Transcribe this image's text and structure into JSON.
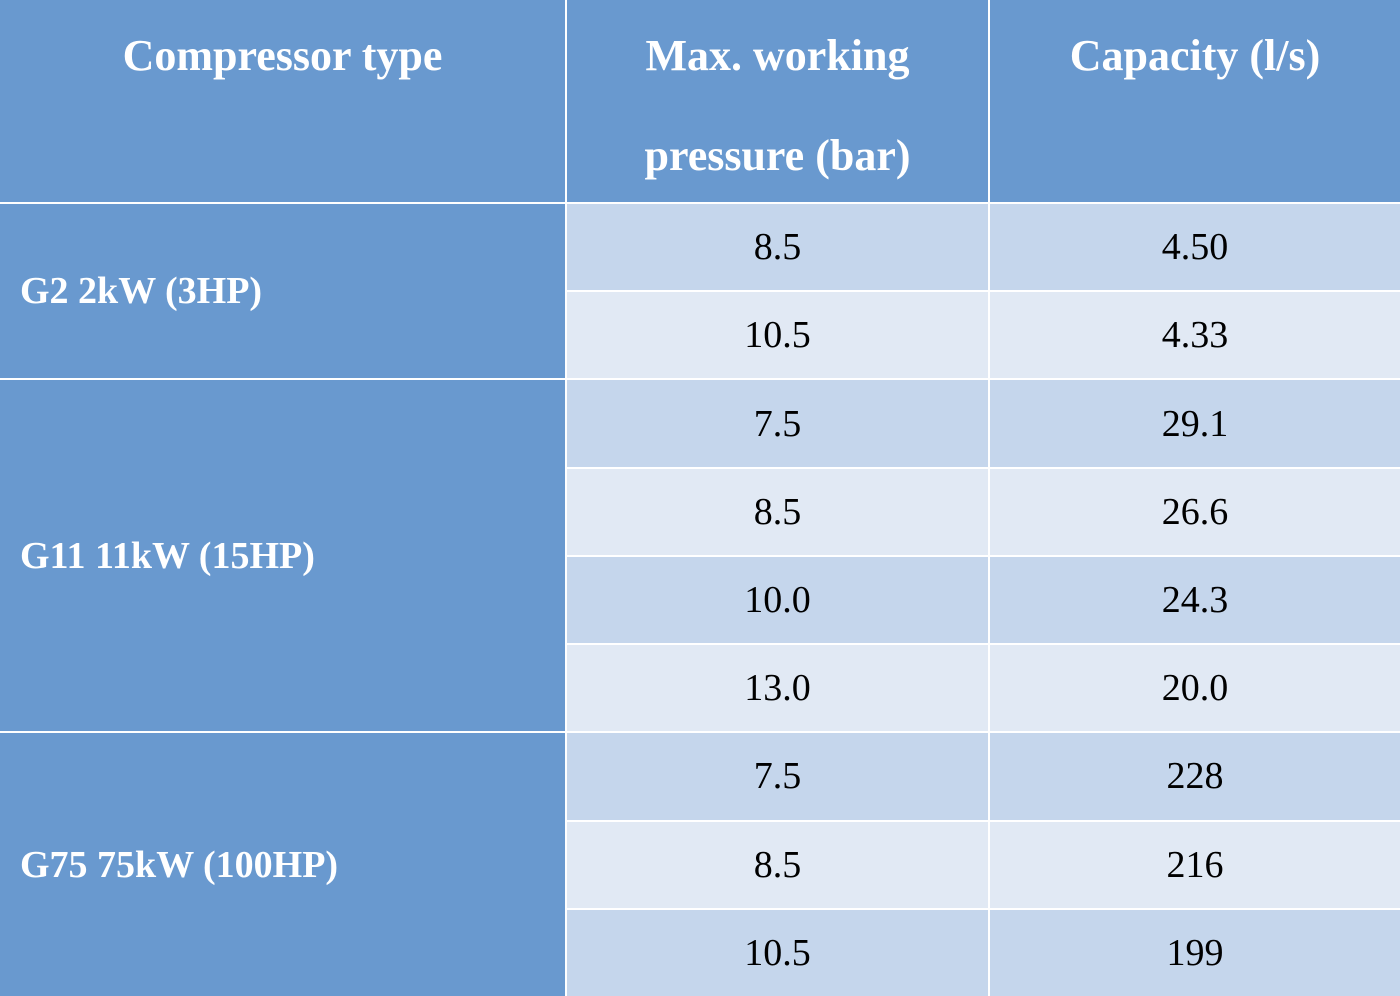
{
  "table": {
    "header": [
      "Compressor type",
      "Max. working pressure (bar)",
      "Capacity (l/s)"
    ],
    "groups": [
      {
        "type": "G2 2kW (3HP)",
        "rows": [
          [
            "8.5",
            "4.50"
          ],
          [
            "10.5",
            "4.33"
          ]
        ]
      },
      {
        "type": "G11 11kW (15HP)",
        "rows": [
          [
            "7.5",
            "29.1"
          ],
          [
            "8.5",
            "26.6"
          ],
          [
            "10.0",
            "24.3"
          ],
          [
            "13.0",
            "20.0"
          ]
        ]
      },
      {
        "type": "G75 75kW (100HP)",
        "rows": [
          [
            "7.5",
            "228"
          ],
          [
            "8.5",
            "216"
          ],
          [
            "10.5",
            "199"
          ]
        ]
      }
    ]
  }
}
